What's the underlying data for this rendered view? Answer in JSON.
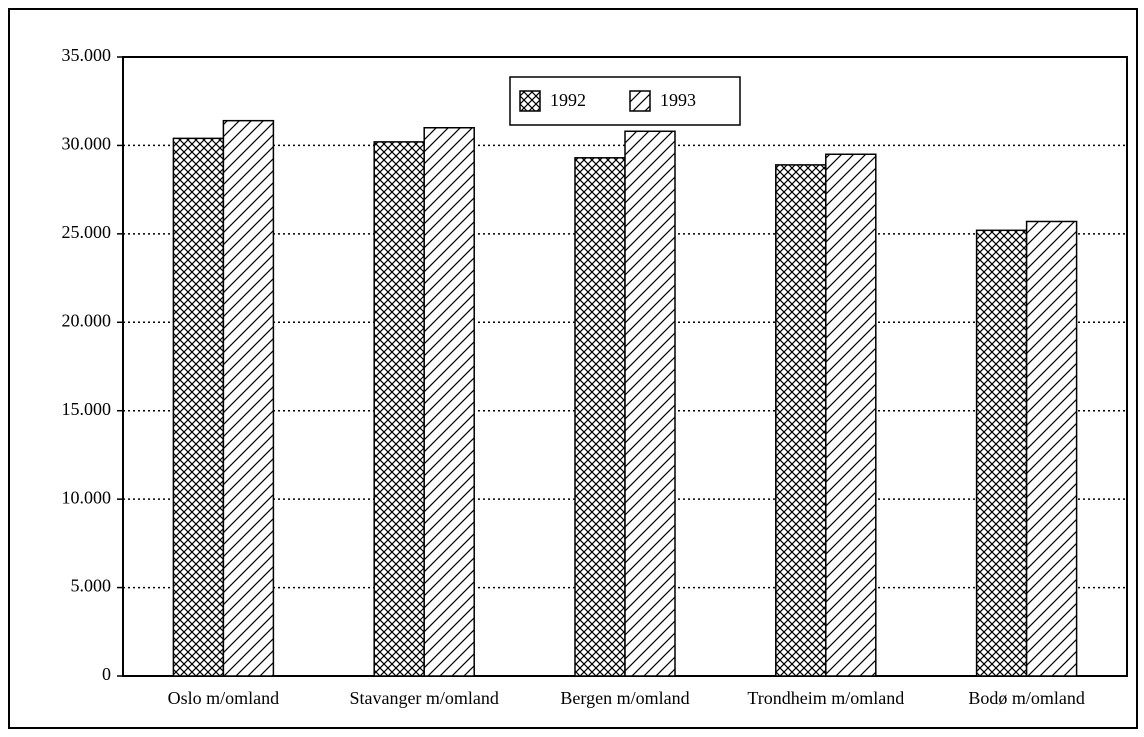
{
  "chart_data": {
    "type": "bar",
    "categories": [
      "Oslo m/omland",
      "Stavanger m/omland",
      "Bergen m/omland",
      "Trondheim m/omland",
      "Bodø m/omland"
    ],
    "series": [
      {
        "name": "1992",
        "color": "#000000",
        "pattern": "crosshatch",
        "values": [
          30400,
          30200,
          29300,
          28900,
          25200
        ]
      },
      {
        "name": "1993",
        "color": "#000000",
        "pattern": "diagonal",
        "values": [
          31400,
          31000,
          30800,
          29500,
          25700
        ]
      }
    ],
    "ylim": [
      0,
      35000
    ],
    "yticks": [
      0,
      {
        "value": 5000,
        "label": "5.000"
      },
      {
        "value": 10000,
        "label": "10.000"
      },
      {
        "value": 15000,
        "label": "15.000"
      },
      {
        "value": 20000,
        "label": "20.000"
      },
      {
        "value": 25000,
        "label": "25.000"
      },
      {
        "value": 30000,
        "label": "30.000"
      },
      {
        "value": 35000,
        "label": "35.000"
      }
    ],
    "grid": true,
    "legend": "top-center"
  }
}
